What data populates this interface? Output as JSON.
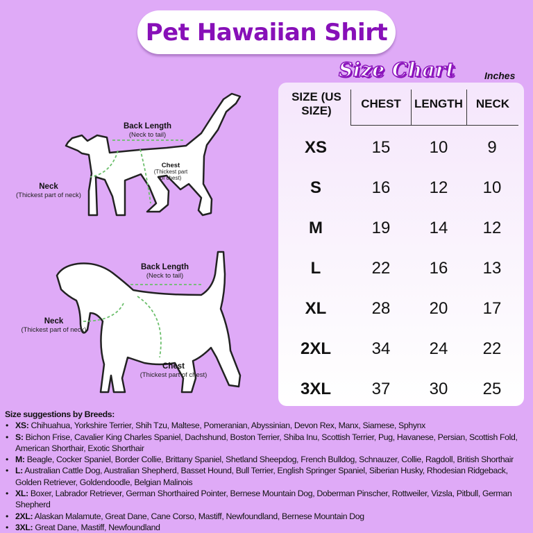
{
  "title": "Pet Hawaiian Shirt",
  "subtitle": "Size Chart",
  "unit": "Inches",
  "colors": {
    "background": "#dfaaf7",
    "accent": "#8710b8",
    "measure_line": "#6cbf6c"
  },
  "table": {
    "headers": [
      "SIZE (US SIZE)",
      "CHEST",
      "LENGTH",
      "NECK"
    ],
    "rows": [
      {
        "size": "XS",
        "chest": "15",
        "length": "10",
        "neck": "9"
      },
      {
        "size": "S",
        "chest": "16",
        "length": "12",
        "neck": "10"
      },
      {
        "size": "M",
        "chest": "19",
        "length": "14",
        "neck": "12"
      },
      {
        "size": "L",
        "chest": "22",
        "length": "16",
        "neck": "13"
      },
      {
        "size": "XL",
        "chest": "28",
        "length": "20",
        "neck": "17"
      },
      {
        "size": "2XL",
        "chest": "34",
        "length": "24",
        "neck": "22"
      },
      {
        "size": "3XL",
        "chest": "37",
        "length": "30",
        "neck": "25"
      }
    ]
  },
  "cat_labels": {
    "back_length": "Back Length",
    "back_length_note": "(Neck to tail)",
    "chest": "Chest",
    "chest_note": "(Thickest part of chest)",
    "neck": "Neck",
    "neck_note": "(Thickest part of neck)"
  },
  "dog_labels": {
    "back_length": "Back Length",
    "back_length_note": "(Neck to tail)",
    "chest": "Chest",
    "chest_note": "(Thickest part of chest)",
    "neck": "Neck",
    "neck_note": "(Thickest part of neck)"
  },
  "breeds": {
    "heading": "Size suggestions by Breeds:",
    "items": [
      {
        "size": "XS:",
        "text": " Chihuahua, Yorkshire Terrier, Shih Tzu, Maltese, Pomeranian, Abyssinian, Devon Rex, Manx, Siamese, Sphynx"
      },
      {
        "size": "S:",
        "text": " Bichon Frise, Cavalier King Charles Spaniel, Dachshund, Boston Terrier, Shiba Inu, Scottish Terrier, Pug, Havanese, Persian, Scottish Fold, American Shorthair, Exotic Shorthair"
      },
      {
        "size": "M:",
        "text": " Beagle, Cocker Spaniel, Border Collie, Brittany Spaniel, Shetland Sheepdog, French Bulldog, Schnauzer, Collie, Ragdoll, British Shorthair"
      },
      {
        "size": "L:",
        "text": " Australian Cattle Dog, Australian Shepherd, Basset Hound, Bull Terrier, English Springer Spaniel, Siberian Husky, Rhodesian Ridgeback, Golden Retriever, Goldendoodle, Belgian Malinois"
      },
      {
        "size": "XL:",
        "text": " Boxer, Labrador Retriever, German Shorthaired Pointer, Bernese Mountain Dog, Doberman Pinscher, Rottweiler, Vizsla, Pitbull, German Shepherd"
      },
      {
        "size": "2XL:",
        "text": " Alaskan Malamute, Great Dane, Cane Corso, Mastiff, Newfoundland, Bernese Mountain Dog"
      },
      {
        "size": "3XL:",
        "text": " Great Dane, Mastiff, Newfoundland"
      }
    ]
  }
}
